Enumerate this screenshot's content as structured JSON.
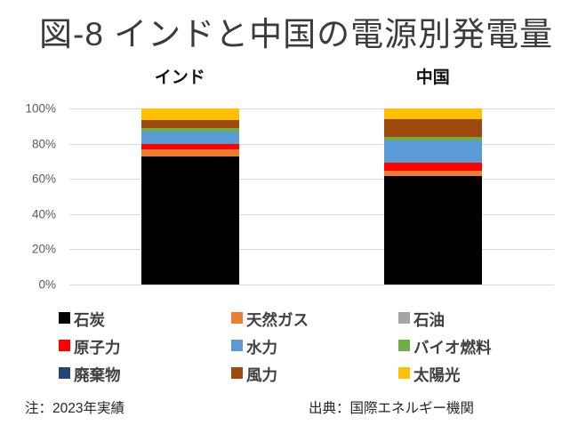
{
  "title": "図-8 インドと中国の電源別発電量",
  "notes": {
    "left": "注：2023年実績",
    "right": "出典：国際エネルギー機関"
  },
  "colors": {
    "background": "#ffffff",
    "gridline": "#d9d9d9",
    "axis_text": "#595959",
    "legend_text": "#3f3f3f",
    "title_text": "#3b3b3b"
  },
  "chart_data": {
    "type": "bar",
    "stacked": true,
    "unit": "percent",
    "title": "図-8 インドと中国の電源別発電量",
    "categories": [
      "インド",
      "中国"
    ],
    "series": [
      {
        "key": "coal",
        "name": "石炭",
        "color": "#000000",
        "values": [
          72.5,
          61.5
        ]
      },
      {
        "key": "gas",
        "name": "天然ガス",
        "color": "#ED7D31",
        "values": [
          4.5,
          3
        ]
      },
      {
        "key": "oil",
        "name": "石油",
        "color": "#A5A5A5",
        "values": [
          0,
          0
        ]
      },
      {
        "key": "nuclear",
        "name": "原子力",
        "color": "#FF0000",
        "values": [
          3,
          4.5
        ]
      },
      {
        "key": "hydro",
        "name": "水力",
        "color": "#5B9BD5",
        "values": [
          7,
          13
        ]
      },
      {
        "key": "biofuel",
        "name": "バイオ燃料",
        "color": "#70AD47",
        "values": [
          1.7,
          2
        ]
      },
      {
        "key": "waste",
        "name": "廃棄物",
        "color": "#264478",
        "values": [
          0,
          0
        ]
      },
      {
        "key": "wind",
        "name": "風力",
        "color": "#9E480E",
        "values": [
          5,
          10
        ]
      },
      {
        "key": "solar",
        "name": "太陽光",
        "color": "#FFC000",
        "values": [
          6.3,
          6
        ]
      }
    ],
    "ylim": [
      0,
      100
    ],
    "yticks": [
      0,
      20,
      40,
      60,
      80,
      100
    ],
    "ytick_labels": [
      "0%",
      "20%",
      "40%",
      "60%",
      "80%",
      "100%"
    ],
    "grid": true,
    "legend_position": "bottom"
  }
}
